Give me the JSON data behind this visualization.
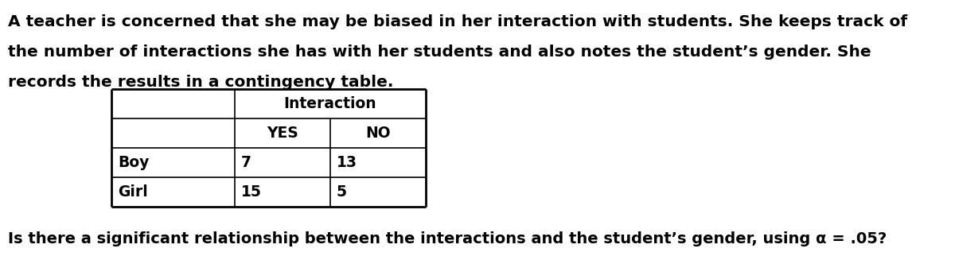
{
  "paragraph_text_lines": [
    "A teacher is concerned that she may be biased in her interaction with students. She keeps track of",
    "the number of interactions she has with her students and also notes the student’s gender. She",
    "records the results in a contingency table."
  ],
  "question_text": "Is there a significant relationship between the interactions and the student’s gender, using α = .05?",
  "table_header_span": "Interaction",
  "col_headers": [
    "YES",
    "NO"
  ],
  "row_labels": [
    "Boy",
    "Girl"
  ],
  "data": [
    [
      7,
      13
    ],
    [
      15,
      5
    ]
  ],
  "bg_color": "#ffffff",
  "text_color": "#000000",
  "font_size_para": 14.5,
  "font_size_table": 13.5,
  "font_size_question": 14.0
}
